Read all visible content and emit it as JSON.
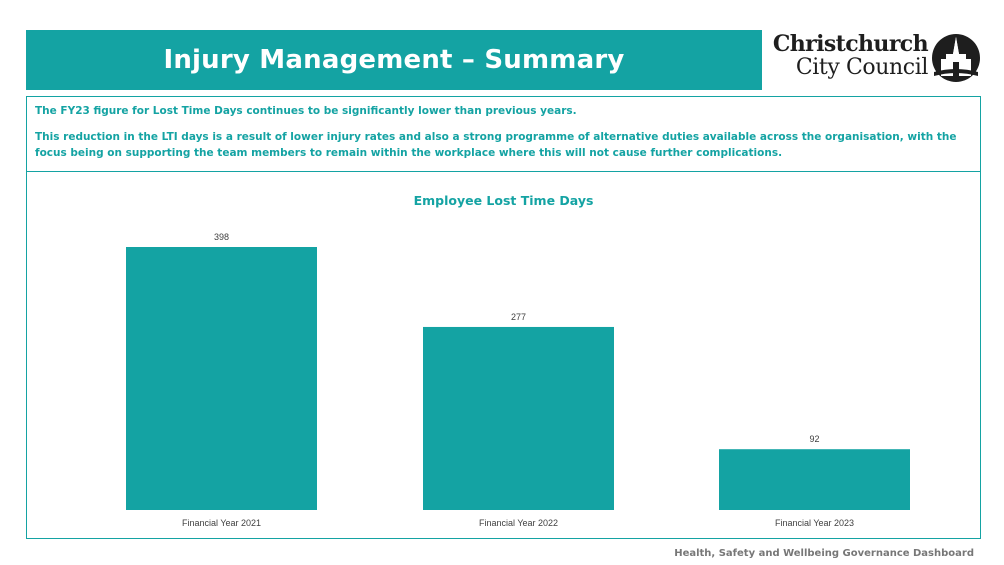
{
  "header": {
    "title": "Injury Management – Summary",
    "logo_line1": "Christchurch",
    "logo_line2": "City Council"
  },
  "summary": {
    "paragraph1": "The FY23 figure for Lost Time Days continues to be significantly lower than previous years.",
    "paragraph2": "This reduction in the LTI days is a result of lower injury rates and also a strong programme of alternative duties available across the organisation, with the focus being on supporting the team members to remain within the workplace where this will not cause further complications."
  },
  "footer": {
    "text": "Health, Safety and Wellbeing Governance Dashboard"
  },
  "colors": {
    "accent": "#14a3a3",
    "bar": "#14a3a3",
    "label": "#404040"
  },
  "chart_data": {
    "type": "bar",
    "title": "Employee Lost Time Days",
    "categories": [
      "Financial Year 2021",
      "Financial Year 2022",
      "Financial Year 2023"
    ],
    "values": [
      398,
      277,
      92
    ],
    "data_labels": [
      "398",
      "277",
      "92"
    ],
    "ylim": [
      0,
      398
    ],
    "grid": false,
    "legend": "none"
  }
}
